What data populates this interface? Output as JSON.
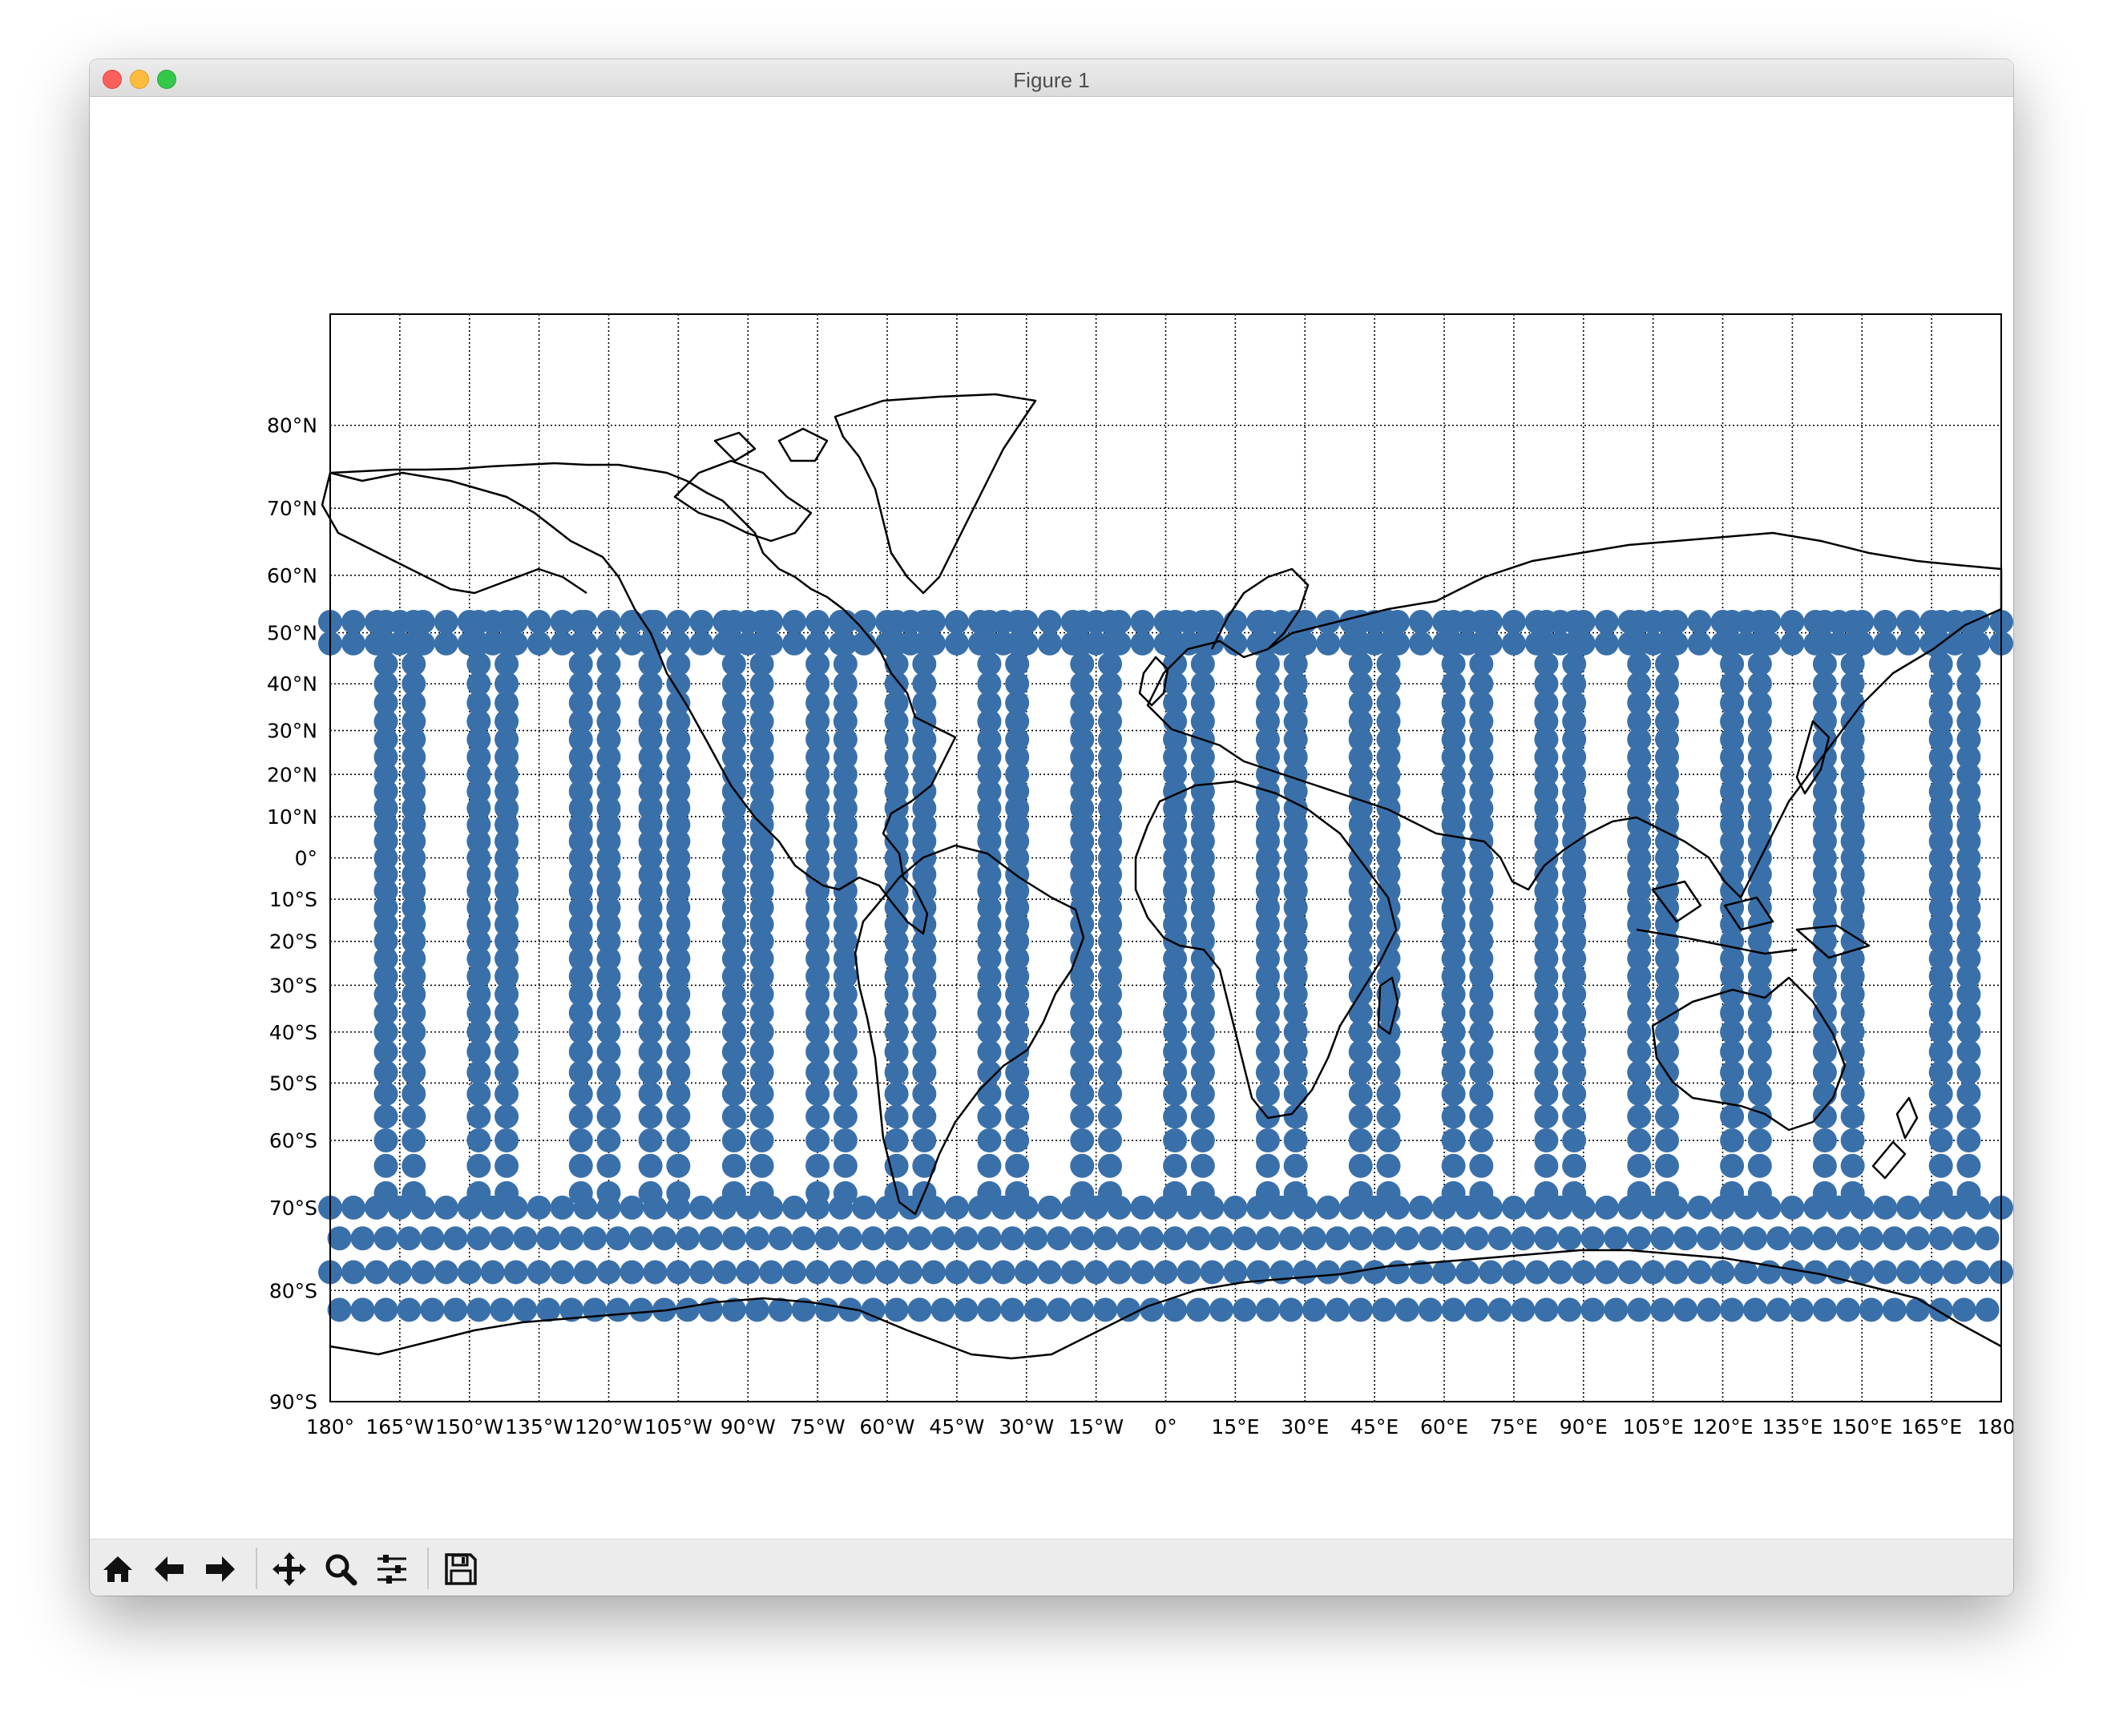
{
  "window": {
    "title": "Figure 1"
  },
  "toolbar": {
    "buttons": [
      {
        "icon": "home-icon"
      },
      {
        "icon": "back-arrow-icon"
      },
      {
        "icon": "forward-arrow-icon"
      },
      {
        "icon": "pan-icon"
      },
      {
        "icon": "zoom-icon"
      },
      {
        "icon": "configure-subplots-icon"
      },
      {
        "icon": "save-icon"
      }
    ]
  },
  "chart_data": {
    "type": "scatter",
    "title": "",
    "xlabel": "",
    "ylabel": "",
    "projection": "miller cylindrical world map with coastlines",
    "xlim": [
      -180,
      180
    ],
    "ylim": [
      -90,
      90
    ],
    "grid": "dotted meridians every 15 degrees, dotted parallels every 10 degrees",
    "marker_color": "#3a70aa",
    "coastline_color": "#000000",
    "x_tick_values": [
      -180,
      -165,
      -150,
      -135,
      -120,
      -105,
      -90,
      -75,
      -60,
      -45,
      -30,
      -15,
      0,
      15,
      30,
      45,
      60,
      75,
      90,
      105,
      120,
      135,
      150,
      165,
      180
    ],
    "x_tick_labels": [
      "180°",
      "165°W",
      "150°W",
      "135°W",
      "120°W",
      "105°W",
      "90°W",
      "75°W",
      "60°W",
      "45°W",
      "30°W",
      "15°W",
      "0°",
      "15°E",
      "30°E",
      "45°E",
      "60°E",
      "75°E",
      "90°E",
      "105°E",
      "120°E",
      "135°E",
      "150°E",
      "165°E",
      "180°"
    ],
    "y_tick_values": [
      80,
      70,
      60,
      50,
      40,
      30,
      20,
      10,
      0,
      -10,
      -20,
      -30,
      -40,
      -50,
      -60,
      -70,
      -80,
      -90
    ],
    "y_tick_labels": [
      "80°N",
      "70°N",
      "60°N",
      "50°N",
      "40°N",
      "30°N",
      "20°N",
      "10°N",
      "0°",
      "10°S",
      "20°S",
      "30°S",
      "40°S",
      "50°S",
      "60°S",
      "70°S",
      "80°S",
      "90°S"
    ],
    "series": [
      {
        "description": "satellite ground-track samples between about 52°N and 84°S, zig-zag passes",
        "tracks": [
          {
            "lon": -165,
            "lat": [
              52,
              48,
              44,
              40,
              36,
              32,
              28,
              24,
              20,
              16,
              12,
              8,
              4,
              0,
              -4,
              -8,
              -12,
              -16,
              -20,
              -24,
              -28,
              -32,
              -36,
              -40,
              -44,
              -48,
              -52,
              -56,
              -60,
              -64,
              -68
            ]
          },
          {
            "lon": -145,
            "lat": [
              52,
              48,
              44,
              40,
              36,
              32,
              28,
              24,
              20,
              16,
              12,
              8,
              4,
              0,
              -4,
              -8,
              -12,
              -16,
              -20,
              -24,
              -28,
              -32,
              -36,
              -40,
              -44,
              -48,
              -52,
              -56,
              -60,
              -64,
              -68
            ]
          },
          {
            "lon": -123,
            "lat": [
              52,
              48,
              44,
              40,
              36,
              32,
              28,
              24,
              20,
              16,
              12,
              8,
              4,
              0,
              -4,
              -8,
              -12,
              -16,
              -20,
              -24,
              -28,
              -32,
              -36,
              -40,
              -44,
              -48,
              -52,
              -56,
              -60,
              -64,
              -68
            ]
          },
          {
            "lon": -108,
            "lat": [
              52,
              48,
              44,
              40,
              36,
              32,
              28,
              24,
              20,
              16,
              12,
              8,
              4,
              0,
              -4,
              -8,
              -12,
              -16,
              -20,
              -24,
              -28,
              -32,
              -36,
              -40,
              -44,
              -48,
              -52,
              -56,
              -60,
              -64,
              -68
            ]
          },
          {
            "lon": -90,
            "lat": [
              52,
              48,
              44,
              40,
              36,
              32,
              28,
              24,
              20,
              16,
              12,
              8,
              4,
              0,
              -4,
              -8,
              -12,
              -16,
              -20,
              -24,
              -28,
              -32,
              -36,
              -40,
              -44,
              -48,
              -52,
              -56,
              -60,
              -64,
              -68
            ]
          },
          {
            "lon": -72,
            "lat": [
              52,
              48,
              44,
              40,
              36,
              32,
              28,
              24,
              20,
              16,
              12,
              8,
              4,
              0,
              -4,
              -8,
              -12,
              -16,
              -20,
              -24,
              -28,
              -32,
              -36,
              -40,
              -44,
              -48,
              -52,
              -56,
              -60,
              -64,
              -68
            ]
          },
          {
            "lon": -55,
            "lat": [
              52,
              48,
              44,
              40,
              36,
              32,
              28,
              24,
              20,
              16,
              12,
              8,
              4,
              0,
              -4,
              -8,
              -12,
              -16,
              -20,
              -24,
              -28,
              -32,
              -36,
              -40,
              -44,
              -48,
              -52,
              -56,
              -60,
              -64,
              -68
            ]
          },
          {
            "lon": -35,
            "lat": [
              52,
              48,
              44,
              40,
              36,
              32,
              28,
              24,
              20,
              16,
              12,
              8,
              4,
              0,
              -4,
              -8,
              -12,
              -16,
              -20,
              -24,
              -28,
              -32,
              -36,
              -40,
              -44,
              -48,
              -52,
              -56,
              -60,
              -64,
              -68
            ]
          },
          {
            "lon": -15,
            "lat": [
              52,
              48,
              44,
              40,
              36,
              32,
              28,
              24,
              20,
              16,
              12,
              8,
              4,
              0,
              -4,
              -8,
              -12,
              -16,
              -20,
              -24,
              -28,
              -32,
              -36,
              -40,
              -44,
              -48,
              -52,
              -56,
              -60,
              -64,
              -68
            ]
          },
          {
            "lon": 5,
            "lat": [
              52,
              48,
              44,
              40,
              36,
              32,
              28,
              24,
              20,
              16,
              12,
              8,
              4,
              0,
              -4,
              -8,
              -12,
              -16,
              -20,
              -24,
              -28,
              -32,
              -36,
              -40,
              -44,
              -48,
              -52,
              -56,
              -60,
              -64,
              -68
            ]
          },
          {
            "lon": 25,
            "lat": [
              52,
              48,
              44,
              40,
              36,
              32,
              28,
              24,
              20,
              16,
              12,
              8,
              4,
              0,
              -4,
              -8,
              -12,
              -16,
              -20,
              -24,
              -28,
              -32,
              -36,
              -40,
              -44,
              -48,
              -52,
              -56,
              -60,
              -64,
              -68
            ]
          },
          {
            "lon": 45,
            "lat": [
              52,
              48,
              44,
              40,
              36,
              32,
              28,
              24,
              20,
              16,
              12,
              8,
              4,
              0,
              -4,
              -8,
              -12,
              -16,
              -20,
              -24,
              -28,
              -32,
              -36,
              -40,
              -44,
              -48,
              -52,
              -56,
              -60,
              -64,
              -68
            ]
          },
          {
            "lon": 65,
            "lat": [
              52,
              48,
              44,
              40,
              36,
              32,
              28,
              24,
              20,
              16,
              12,
              8,
              4,
              0,
              -4,
              -8,
              -12,
              -16,
              -20,
              -24,
              -28,
              -32,
              -36,
              -40,
              -44,
              -48,
              -52,
              -56,
              -60,
              -64,
              -68
            ]
          },
          {
            "lon": 85,
            "lat": [
              52,
              48,
              44,
              40,
              36,
              32,
              28,
              24,
              20,
              16,
              12,
              8,
              4,
              0,
              -4,
              -8,
              -12,
              -16,
              -20,
              -24,
              -28,
              -32,
              -36,
              -40,
              -44,
              -48,
              -52,
              -56,
              -60,
              -64,
              -68
            ]
          },
          {
            "lon": 105,
            "lat": [
              52,
              48,
              44,
              40,
              36,
              32,
              28,
              24,
              20,
              16,
              12,
              8,
              4,
              0,
              -4,
              -8,
              -12,
              -16,
              -20,
              -24,
              -28,
              -32,
              -36,
              -40,
              -44,
              -48,
              -52,
              -56,
              -60,
              -64,
              -68
            ]
          },
          {
            "lon": 125,
            "lat": [
              52,
              48,
              44,
              40,
              36,
              32,
              28,
              24,
              20,
              16,
              12,
              8,
              4,
              0,
              -4,
              -8,
              -12,
              -16,
              -20,
              -24,
              -28,
              -32,
              -36,
              -40,
              -44,
              -48,
              -52,
              -56,
              -60,
              -64,
              -68
            ]
          },
          {
            "lon": 145,
            "lat": [
              52,
              48,
              44,
              40,
              36,
              32,
              28,
              24,
              20,
              16,
              12,
              8,
              4,
              0,
              -4,
              -8,
              -12,
              -16,
              -20,
              -24,
              -28,
              -32,
              -36,
              -40,
              -44,
              -48,
              -52,
              -56,
              -60,
              -64,
              -68
            ]
          },
          {
            "lon": 170,
            "lat": [
              52,
              48,
              44,
              40,
              36,
              32,
              28,
              24,
              20,
              16,
              12,
              8,
              4,
              0,
              -4,
              -8,
              -12,
              -16,
              -20,
              -24,
              -28,
              -32,
              -36,
              -40,
              -44,
              -48,
              -52,
              -56,
              -60,
              -64,
              -68
            ]
          }
        ],
        "band_north": {
          "lat": [
            52,
            48
          ],
          "lon_step": 5
        },
        "band_south": {
          "lat": [
            -70,
            -74,
            -78,
            -82
          ],
          "lon_step": 5
        }
      }
    ]
  }
}
